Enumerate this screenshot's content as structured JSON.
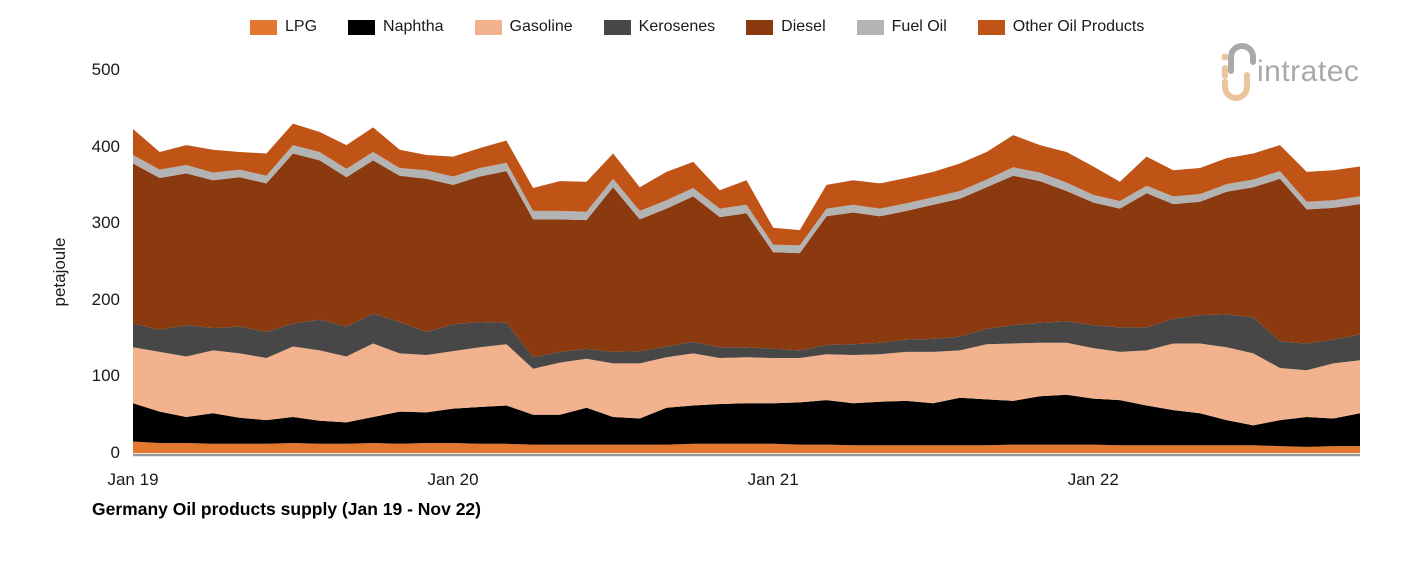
{
  "title": "Germany Oil products supply (Jan 19 - Nov 22)",
  "logo": {
    "text": "intratec",
    "gray": "#a9a9a9",
    "peach": "#eac49c"
  },
  "y_axis": {
    "label": "petajoule",
    "ticks": [
      0,
      100,
      200,
      300,
      400,
      500
    ]
  },
  "x_axis": {
    "tick_labels": [
      "Jan 19",
      "Jan 20",
      "Jan 21",
      "Jan 22"
    ],
    "tick_month_indices": [
      0,
      12,
      24,
      36
    ]
  },
  "colors": {
    "axis_line": "#9a9a9a",
    "text": "#1a1a1a"
  },
  "chart_data": {
    "type": "area",
    "stacked": true,
    "title": "Germany Oil products supply (Jan 19 - Nov 22)",
    "xlabel": "",
    "ylabel": "petajoule",
    "ylim": [
      0,
      500
    ],
    "grid": false,
    "legend_position": "top",
    "x": [
      "Jan 19",
      "Feb 19",
      "Mar 19",
      "Apr 19",
      "May 19",
      "Jun 19",
      "Jul 19",
      "Aug 19",
      "Sep 19",
      "Oct 19",
      "Nov 19",
      "Dec 19",
      "Jan 20",
      "Feb 20",
      "Mar 20",
      "Apr 20",
      "May 20",
      "Jun 20",
      "Jul 20",
      "Aug 20",
      "Sep 20",
      "Oct 20",
      "Nov 20",
      "Dec 20",
      "Jan 21",
      "Feb 21",
      "Mar 21",
      "Apr 21",
      "May 21",
      "Jun 21",
      "Jul 21",
      "Aug 21",
      "Sep 21",
      "Oct 21",
      "Nov 21",
      "Dec 21",
      "Jan 22",
      "Feb 22",
      "Mar 22",
      "Apr 22",
      "May 22",
      "Jun 22",
      "Jul 22",
      "Aug 22",
      "Sep 22",
      "Oct 22",
      "Nov 22"
    ],
    "series": [
      {
        "name": "LPG",
        "color": "#e4772f",
        "values": [
          15,
          13,
          13,
          12,
          12,
          12,
          13,
          12,
          12,
          13,
          12,
          13,
          13,
          12,
          12,
          11,
          11,
          11,
          11,
          11,
          11,
          12,
          12,
          12,
          12,
          11,
          11,
          10,
          10,
          10,
          10,
          10,
          10,
          11,
          11,
          11,
          11,
          10,
          10,
          10,
          10,
          10,
          10,
          9,
          8,
          9,
          9
        ]
      },
      {
        "name": "Naphtha",
        "color": "#000000",
        "values": [
          50,
          41,
          34,
          40,
          34,
          31,
          34,
          30,
          28,
          34,
          42,
          40,
          45,
          48,
          50,
          39,
          39,
          48,
          36,
          34,
          48,
          50,
          52,
          53,
          53,
          55,
          58,
          55,
          57,
          58,
          55,
          62,
          60,
          57,
          63,
          65,
          60,
          59,
          52,
          46,
          42,
          33,
          26,
          34,
          39,
          36,
          43
        ]
      },
      {
        "name": "Gasoline",
        "color": "#f2b28d",
        "values": [
          73,
          78,
          79,
          82,
          84,
          81,
          92,
          92,
          86,
          96,
          76,
          75,
          75,
          78,
          80,
          60,
          68,
          64,
          70,
          72,
          66,
          68,
          60,
          60,
          59,
          58,
          60,
          63,
          62,
          64,
          67,
          62,
          72,
          75,
          70,
          68,
          66,
          63,
          72,
          87,
          91,
          95,
          94,
          68,
          61,
          72,
          69
        ]
      },
      {
        "name": "Kerosenes",
        "color": "#474747",
        "values": [
          31,
          29,
          41,
          29,
          35,
          34,
          30,
          40,
          39,
          39,
          41,
          30,
          35,
          33,
          28,
          15,
          14,
          13,
          15,
          16,
          14,
          15,
          14,
          13,
          12,
          10,
          12,
          14,
          15,
          16,
          17,
          18,
          20,
          24,
          26,
          28,
          30,
          32,
          30,
          32,
          37,
          43,
          47,
          35,
          35,
          31,
          34
        ]
      },
      {
        "name": "Diesel",
        "color": "#8b3a0f",
        "values": [
          209,
          198,
          198,
          193,
          195,
          194,
          222,
          208,
          195,
          200,
          191,
          200,
          182,
          190,
          198,
          180,
          173,
          168,
          215,
          172,
          180,
          190,
          170,
          175,
          126,
          127,
          168,
          172,
          165,
          168,
          175,
          180,
          185,
          195,
          185,
          170,
          160,
          155,
          175,
          150,
          148,
          160,
          170,
          212,
          175,
          172,
          170
        ]
      },
      {
        "name": "Fuel Oil",
        "color": "#b3b3b3",
        "values": [
          11,
          11,
          11,
          10,
          10,
          10,
          11,
          11,
          11,
          11,
          10,
          11,
          11,
          11,
          11,
          11,
          11,
          11,
          11,
          11,
          11,
          11,
          11,
          11,
          10,
          10,
          10,
          10,
          10,
          10,
          10,
          10,
          10,
          11,
          11,
          11,
          10,
          10,
          10,
          10,
          10,
          10,
          10,
          10,
          10,
          10,
          10
        ]
      },
      {
        "name": "Other Oil Products",
        "color": "#c05417",
        "values": [
          34,
          23,
          26,
          30,
          23,
          29,
          28,
          26,
          31,
          32,
          24,
          20,
          26,
          26,
          29,
          30,
          39,
          39,
          33,
          31,
          37,
          34,
          24,
          32,
          22,
          20,
          31,
          32,
          33,
          33,
          33,
          36,
          36,
          42,
          36,
          40,
          37,
          25,
          38,
          34,
          34,
          34,
          34,
          34,
          39,
          39,
          39
        ]
      }
    ]
  }
}
